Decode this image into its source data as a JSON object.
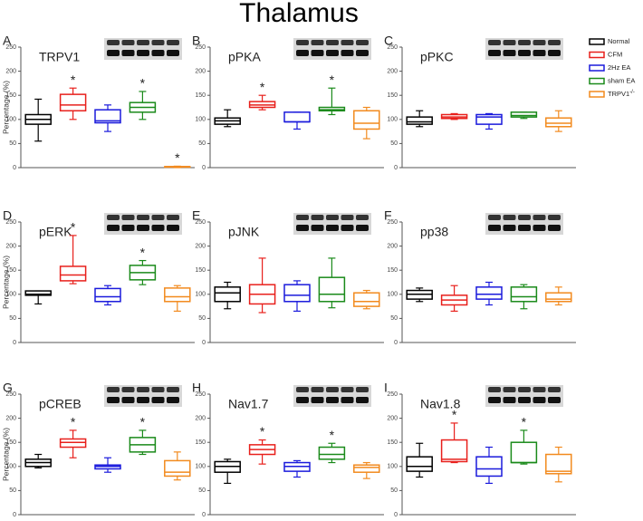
{
  "title": "Thalamus",
  "ylabel": "Percentage (%)",
  "legend": [
    {
      "name": "Normal",
      "color": "#000000"
    },
    {
      "name": "CFM",
      "color": "#e8201c"
    },
    {
      "name": "2Hz EA",
      "color": "#1a1adc"
    },
    {
      "name": "sham EA",
      "color": "#1a8a1a"
    },
    {
      "name": "TRPV1",
      "sup": "-/-",
      "color": "#f28a1e"
    }
  ],
  "chart_data": [
    {
      "type": "box",
      "letter": "A",
      "title": "TRPV1",
      "ylim": [
        0,
        250
      ],
      "yticks": [
        0,
        50,
        100,
        150,
        200,
        250
      ],
      "boxes": [
        [
          55,
          90,
          100,
          110,
          142
        ],
        [
          100,
          118,
          130,
          152,
          165
        ],
        [
          75,
          93,
          97,
          120,
          130
        ],
        [
          100,
          115,
          125,
          135,
          158
        ],
        [
          0,
          1,
          2,
          2,
          3
        ]
      ],
      "annotations": [
        null,
        "*",
        null,
        "*",
        "*"
      ]
    },
    {
      "type": "box",
      "letter": "B",
      "title": "pPKA",
      "ylim": [
        0,
        250
      ],
      "yticks": [
        0,
        50,
        100,
        150,
        200,
        250
      ],
      "boxes": [
        [
          85,
          90,
          97,
          103,
          120
        ],
        [
          120,
          125,
          130,
          137,
          150
        ],
        [
          80,
          95,
          95,
          115,
          115
        ],
        [
          110,
          118,
          120,
          125,
          165
        ],
        [
          60,
          80,
          92,
          118,
          125
        ]
      ],
      "annotations": [
        null,
        "*",
        null,
        "*",
        null
      ]
    },
    {
      "type": "box",
      "letter": "C",
      "title": "pPKC",
      "ylim": [
        0,
        250
      ],
      "yticks": [
        0,
        50,
        100,
        150,
        200,
        250
      ],
      "boxes": [
        [
          85,
          90,
          95,
          105,
          118
        ],
        [
          100,
          102,
          105,
          110,
          112
        ],
        [
          80,
          90,
          105,
          110,
          112
        ],
        [
          102,
          105,
          108,
          115,
          115
        ],
        [
          75,
          85,
          92,
          103,
          118
        ]
      ],
      "annotations": [
        null,
        null,
        null,
        null,
        null
      ]
    },
    {
      "type": "box",
      "letter": "D",
      "title": "pERK",
      "ylim": [
        0,
        250
      ],
      "yticks": [
        0,
        50,
        100,
        150,
        200,
        250
      ],
      "boxes": [
        [
          80,
          98,
          100,
          107,
          107
        ],
        [
          122,
          128,
          140,
          158,
          222
        ],
        [
          78,
          85,
          95,
          112,
          118
        ],
        [
          120,
          130,
          145,
          160,
          170
        ],
        [
          65,
          85,
          95,
          113,
          118
        ]
      ],
      "annotations": [
        null,
        "*",
        null,
        "*",
        null
      ]
    },
    {
      "type": "box",
      "letter": "E",
      "title": "pJNK",
      "ylim": [
        0,
        250
      ],
      "yticks": [
        0,
        50,
        100,
        150,
        200,
        250
      ],
      "boxes": [
        [
          70,
          85,
          103,
          115,
          125
        ],
        [
          62,
          80,
          100,
          120,
          175
        ],
        [
          65,
          85,
          98,
          120,
          128
        ],
        [
          72,
          85,
          100,
          135,
          175
        ],
        [
          70,
          75,
          85,
          103,
          108
        ]
      ],
      "annotations": [
        null,
        null,
        null,
        null,
        null
      ]
    },
    {
      "type": "box",
      "letter": "F",
      "title": "pp38",
      "ylim": [
        0,
        250
      ],
      "yticks": [
        0,
        50,
        100,
        150,
        200,
        250
      ],
      "boxes": [
        [
          85,
          90,
          100,
          108,
          113
        ],
        [
          65,
          78,
          88,
          98,
          118
        ],
        [
          78,
          90,
          100,
          115,
          125
        ],
        [
          70,
          85,
          95,
          115,
          120
        ],
        [
          78,
          85,
          90,
          103,
          115
        ]
      ],
      "annotations": [
        null,
        null,
        null,
        null,
        null
      ]
    },
    {
      "type": "box",
      "letter": "G",
      "title": "pCREB",
      "ylim": [
        0,
        250
      ],
      "yticks": [
        0,
        50,
        100,
        150,
        200,
        250
      ],
      "boxes": [
        [
          97,
          100,
          108,
          115,
          125
        ],
        [
          118,
          140,
          150,
          157,
          175
        ],
        [
          88,
          95,
          100,
          103,
          118
        ],
        [
          125,
          130,
          145,
          160,
          175
        ],
        [
          72,
          80,
          88,
          112,
          130
        ]
      ],
      "annotations": [
        null,
        "*",
        null,
        "*",
        null
      ]
    },
    {
      "type": "box",
      "letter": "H",
      "title": "Nav1.7",
      "ylim": [
        0,
        250
      ],
      "yticks": [
        0,
        50,
        100,
        150,
        200,
        250
      ],
      "boxes": [
        [
          65,
          88,
          100,
          110,
          115
        ],
        [
          105,
          125,
          135,
          145,
          155
        ],
        [
          78,
          90,
          100,
          108,
          112
        ],
        [
          108,
          115,
          125,
          140,
          148
        ],
        [
          75,
          88,
          98,
          103,
          108
        ]
      ],
      "annotations": [
        null,
        "*",
        null,
        "*",
        null
      ]
    },
    {
      "type": "box",
      "letter": "I",
      "title": "Nav1.8",
      "ylim": [
        0,
        250
      ],
      "yticks": [
        0,
        50,
        100,
        150,
        200,
        250
      ],
      "boxes": [
        [
          78,
          90,
          100,
          120,
          148
        ],
        [
          108,
          110,
          115,
          155,
          190
        ],
        [
          65,
          80,
          95,
          120,
          140
        ],
        [
          105,
          108,
          108,
          150,
          175
        ],
        [
          68,
          85,
          90,
          125,
          140
        ]
      ],
      "annotations": [
        null,
        "*",
        null,
        "*",
        null
      ]
    }
  ]
}
